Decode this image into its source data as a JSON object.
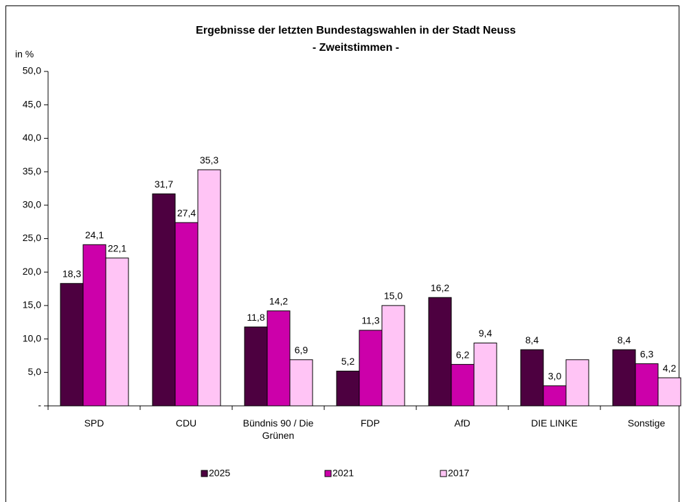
{
  "chart_data": {
    "type": "bar",
    "title": "Ergebnisse der letzten Bundestagswahlen in der Stadt Neuss",
    "subtitle": "- Zweitstimmen -",
    "y_label": "in %",
    "categories": [
      "SPD",
      "CDU",
      "Bündnis 90 / Die Grünen",
      "FDP",
      "AfD",
      "DIE LINKE",
      "Sonstige"
    ],
    "series": [
      {
        "name": "2025",
        "color": "#4d0040",
        "values": [
          18.3,
          31.7,
          11.8,
          5.2,
          16.2,
          8.4,
          8.4
        ],
        "value_labels": [
          "18,3",
          "31,7",
          "11,8",
          "5,2",
          "16,2",
          "8,4",
          "8,4"
        ]
      },
      {
        "name": "2021",
        "color": "#cc00aa",
        "values": [
          24.1,
          27.4,
          14.2,
          11.3,
          6.2,
          3.0,
          6.3
        ],
        "value_labels": [
          "24,1",
          "27,4",
          "14,2",
          "11,3",
          "6,2",
          "3,0",
          "6,3"
        ]
      },
      {
        "name": "2017",
        "color": "#ffc4f5",
        "values": [
          22.1,
          35.3,
          6.9,
          15.0,
          9.4,
          6.9,
          4.2
        ],
        "value_labels": [
          "22,1",
          "35,3",
          "6,9",
          "15,0",
          "9,4",
          null,
          "4,2"
        ]
      }
    ],
    "ylim": [
      0,
      50
    ],
    "yticks": [
      {
        "value": 0,
        "label": "-"
      },
      {
        "value": 5,
        "label": "5,0"
      },
      {
        "value": 10,
        "label": "10,0"
      },
      {
        "value": 15,
        "label": "15,0"
      },
      {
        "value": 20,
        "label": "20,0"
      },
      {
        "value": 25,
        "label": "25,0"
      },
      {
        "value": 30,
        "label": "30,0"
      },
      {
        "value": 35,
        "label": "35,0"
      },
      {
        "value": 40,
        "label": "40,0"
      },
      {
        "value": 45,
        "label": "45,0"
      },
      {
        "value": 50,
        "label": "50,0"
      }
    ],
    "grid": false,
    "legend": "bottom"
  }
}
